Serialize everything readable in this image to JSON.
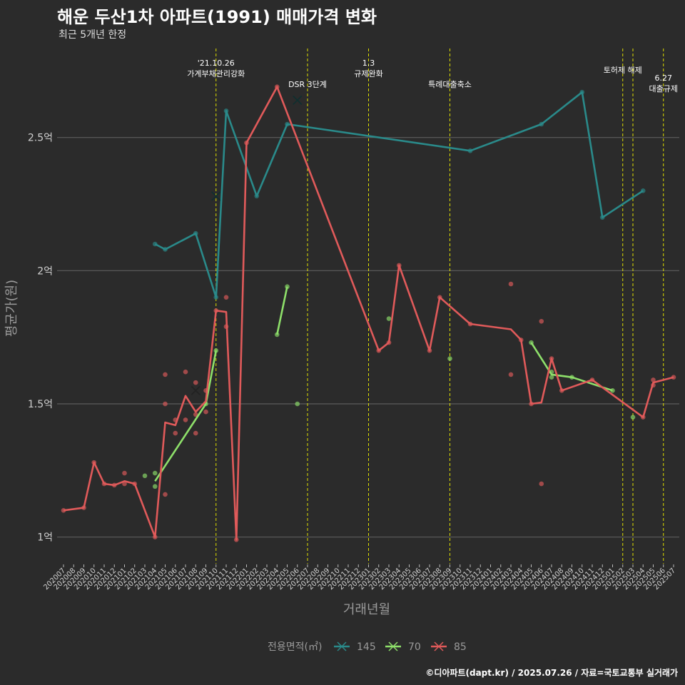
{
  "chart_data": {
    "type": "line",
    "title": "해운 두산1차 아파트(1991) 매매가격 변화",
    "subtitle": "최근 5개년 한정",
    "xlabel": "거래년월",
    "ylabel": "평균가(원)",
    "caption": "©디아파트(dapt.kr) / 2025.07.26 / 자료=국토교통부 실거래가",
    "x_categories": [
      "202007",
      "202008",
      "202009",
      "202010",
      "202011",
      "202012",
      "202101",
      "202102",
      "202103",
      "202104",
      "202105",
      "202106",
      "202107",
      "202108",
      "202109",
      "202110",
      "202111",
      "202112",
      "202201",
      "202202",
      "202203",
      "202204",
      "202205",
      "202206",
      "202207",
      "202208",
      "202209",
      "202210",
      "202211",
      "202212",
      "202301",
      "202302",
      "202303",
      "202304",
      "202305",
      "202306",
      "202307",
      "202308",
      "202309",
      "202310",
      "202311",
      "202312",
      "202401",
      "202402",
      "202403",
      "202404",
      "202405",
      "202406",
      "202407",
      "202408",
      "202409",
      "202410",
      "202411",
      "202412",
      "202501",
      "202502",
      "202503",
      "202504",
      "202505",
      "202506",
      "202507"
    ],
    "y_ticks": [
      {
        "value": 1.0,
        "label": "1억"
      },
      {
        "value": 1.5,
        "label": "1.5억"
      },
      {
        "value": 2.0,
        "label": "2억"
      },
      {
        "value": 2.5,
        "label": "2.5억"
      }
    ],
    "ylim": [
      0.9,
      2.85
    ],
    "legend": {
      "title": "전용면적(㎡)",
      "position": "bottom"
    },
    "events": [
      {
        "x": "202110",
        "label": "'21.10.26\n가계부채관리강화"
      },
      {
        "x": "202207",
        "label": "DSR 3단계"
      },
      {
        "x": "202301",
        "label": "1.3\n규제완화"
      },
      {
        "x": "202309",
        "label": "특례대출축소"
      },
      {
        "x": "202502",
        "label": "토허제 해제"
      },
      {
        "x": "202503",
        "label": ""
      },
      {
        "x": "202506",
        "label": "6.27\n대출규제"
      }
    ],
    "series": [
      {
        "name": "145",
        "color": "#2a8a8a",
        "line": [
          [
            "202104",
            2.1
          ],
          [
            "202105",
            2.08
          ],
          [
            "202108",
            2.14
          ],
          [
            "202110",
            1.9
          ],
          [
            "202111",
            2.6
          ],
          [
            "202202",
            2.28
          ],
          [
            "202205",
            2.55
          ],
          [
            "202311",
            2.45
          ],
          [
            "202406",
            2.55
          ],
          [
            "202410",
            2.67
          ],
          [
            "202412",
            2.2
          ],
          [
            "202504",
            2.3
          ]
        ],
        "points": [
          [
            2.1,
            "202104"
          ],
          [
            2.08,
            "202105"
          ],
          [
            2.14,
            "202108"
          ],
          [
            1.9,
            "202110"
          ],
          [
            2.6,
            "202111"
          ],
          [
            2.28,
            "202202"
          ],
          [
            2.55,
            "202205"
          ],
          [
            2.45,
            "202311"
          ],
          [
            2.55,
            "202406"
          ],
          [
            2.67,
            "202410"
          ],
          [
            2.2,
            "202412"
          ],
          [
            2.3,
            "202504"
          ]
        ],
        "cancelled": [
          [
            "202110",
            2.28
          ],
          [
            "202206",
            2.64
          ]
        ]
      },
      {
        "name": "70",
        "color": "#8ee06a",
        "line": [
          [
            "202104",
            1.21
          ],
          [
            "202109",
            1.5
          ],
          [
            "202110",
            1.7
          ]
        ],
        "line2": [
          [
            "202204",
            1.76
          ],
          [
            "202205",
            1.94
          ]
        ],
        "line3": [
          [
            "202405",
            1.73
          ],
          [
            "202407",
            1.61
          ],
          [
            "202409",
            1.6
          ],
          [
            "202501",
            1.55
          ]
        ],
        "points": [
          [
            1.23,
            "202103"
          ],
          [
            1.24,
            "202104"
          ],
          [
            1.19,
            "202104"
          ],
          [
            1.5,
            "202109"
          ],
          [
            1.7,
            "202110"
          ],
          [
            1.76,
            "202204"
          ],
          [
            1.94,
            "202205"
          ],
          [
            1.5,
            "202206"
          ],
          [
            1.82,
            "202303"
          ],
          [
            1.67,
            "202309"
          ],
          [
            1.73,
            "202405"
          ],
          [
            1.62,
            "202407"
          ],
          [
            1.6,
            "202407"
          ],
          [
            1.6,
            "202409"
          ],
          [
            1.55,
            "202501"
          ],
          [
            1.45,
            "202503"
          ]
        ],
        "cancelled": []
      },
      {
        "name": "85",
        "color": "#e05a5a",
        "line": [
          [
            "202007",
            1.1
          ],
          [
            "202009",
            1.11
          ],
          [
            "202010",
            1.28
          ],
          [
            "202011",
            1.2
          ],
          [
            "202012",
            1.195
          ],
          [
            "202101",
            1.21
          ],
          [
            "202102",
            1.2
          ],
          [
            "202104",
            1.0
          ],
          [
            "202105",
            1.43
          ],
          [
            "202106",
            1.42
          ],
          [
            "202107",
            1.53
          ],
          [
            "202108",
            1.47
          ],
          [
            "202109",
            1.51
          ],
          [
            "202110",
            1.85
          ],
          [
            "202111",
            1.845
          ],
          [
            "202112",
            0.99
          ],
          [
            "202201",
            2.48
          ],
          [
            "202204",
            2.69
          ],
          [
            "202302",
            1.7
          ],
          [
            "202303",
            1.73
          ],
          [
            "202304",
            2.02
          ],
          [
            "202307",
            1.7
          ],
          [
            "202308",
            1.9
          ],
          [
            "202311",
            1.8
          ],
          [
            "202403",
            1.78
          ],
          [
            "202404",
            1.74
          ],
          [
            "202405",
            1.5
          ],
          [
            "202406",
            1.505
          ],
          [
            "202407",
            1.67
          ],
          [
            "202408",
            1.55
          ],
          [
            "202411",
            1.59
          ],
          [
            "202504",
            1.45
          ],
          [
            "202505",
            1.58
          ],
          [
            "202507",
            1.6
          ]
        ],
        "points": [
          [
            1.1,
            "202007"
          ],
          [
            1.11,
            "202009"
          ],
          [
            1.28,
            "202010"
          ],
          [
            1.2,
            "202011"
          ],
          [
            1.195,
            "202012"
          ],
          [
            1.24,
            "202101"
          ],
          [
            1.2,
            "202101"
          ],
          [
            1.2,
            "202102"
          ],
          [
            1.0,
            "202104"
          ],
          [
            1.61,
            "202105"
          ],
          [
            1.5,
            "202105"
          ],
          [
            1.16,
            "202105"
          ],
          [
            1.44,
            "202106"
          ],
          [
            1.39,
            "202106"
          ],
          [
            1.62,
            "202107"
          ],
          [
            1.44,
            "202107"
          ],
          [
            1.58,
            "202108"
          ],
          [
            1.46,
            "202108"
          ],
          [
            1.39,
            "202108"
          ],
          [
            1.55,
            "202109"
          ],
          [
            1.47,
            "202109"
          ],
          [
            1.85,
            "202110"
          ],
          [
            1.9,
            "202111"
          ],
          [
            1.79,
            "202111"
          ],
          [
            0.99,
            "202112"
          ],
          [
            2.48,
            "202201"
          ],
          [
            2.69,
            "202204"
          ],
          [
            1.7,
            "202302"
          ],
          [
            1.73,
            "202303"
          ],
          [
            2.02,
            "202304"
          ],
          [
            1.7,
            "202307"
          ],
          [
            1.9,
            "202308"
          ],
          [
            1.8,
            "202311"
          ],
          [
            1.95,
            "202403"
          ],
          [
            1.61,
            "202403"
          ],
          [
            1.74,
            "202404"
          ],
          [
            1.5,
            "202405"
          ],
          [
            1.81,
            "202406"
          ],
          [
            1.2,
            "202406"
          ],
          [
            1.67,
            "202407"
          ],
          [
            1.55,
            "202408"
          ],
          [
            1.59,
            "202411"
          ],
          [
            1.45,
            "202504"
          ],
          [
            1.59,
            "202505"
          ],
          [
            1.57,
            "202505"
          ],
          [
            1.6,
            "202507"
          ]
        ],
        "cancelled": [
          [
            "202108",
            1.55
          ]
        ]
      }
    ]
  }
}
